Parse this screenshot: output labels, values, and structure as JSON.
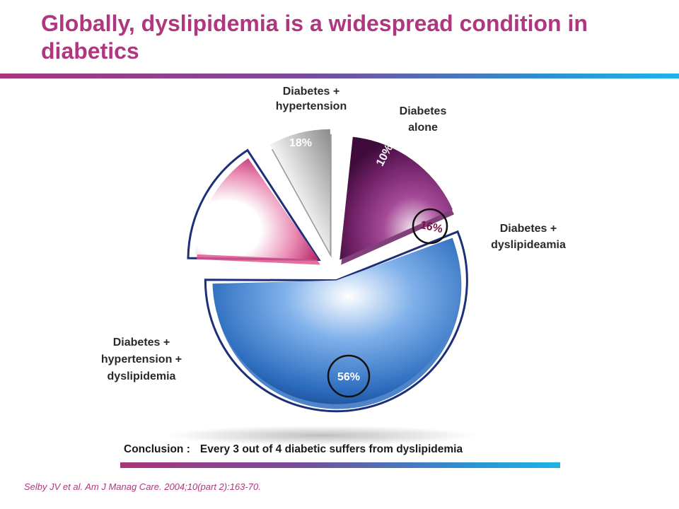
{
  "slide": {
    "title": "Globally, dyslipidemia is a widespread condition in diabetics",
    "conclusion_label": "Conclusion :",
    "conclusion_text": "Every 3 out of 4 diabetic suffers from dyslipidemia",
    "citation": "Selby JV et al. Am J Manag Care. 2004;10(part 2):163-70."
  },
  "chart_data": {
    "type": "pie",
    "title": "",
    "categories": [
      "Diabetes + hypertension + dyslipidemia",
      "Diabetes + hypertension",
      "Diabetes alone",
      "Diabetes + dyslipideamia"
    ],
    "values": [
      56,
      18,
      10,
      16
    ],
    "unit": "%",
    "slices": [
      {
        "label_lines": [
          "Diabetes +",
          "hypertension +",
          "dyslipidemia"
        ],
        "value": 56,
        "value_label": "56%",
        "color": "#2f6fc0",
        "circled": true,
        "outlined": true
      },
      {
        "label_lines": [
          "Diabetes +",
          "hypertension"
        ],
        "value": 18,
        "value_label": "18%",
        "color": "#6b1f63",
        "circled": false,
        "outlined": false
      },
      {
        "label_lines": [
          "Diabetes",
          "alone"
        ],
        "value": 10,
        "value_label": "10%",
        "color": "#8a8a8a",
        "circled": false,
        "outlined": false
      },
      {
        "label_lines": [
          "Diabetes +",
          "dyslipideamia"
        ],
        "value": 16,
        "value_label": "16%",
        "color": "#e0558e",
        "circled": true,
        "outlined": true
      }
    ],
    "outline_color": "#1e2f7a",
    "legend": "none"
  }
}
